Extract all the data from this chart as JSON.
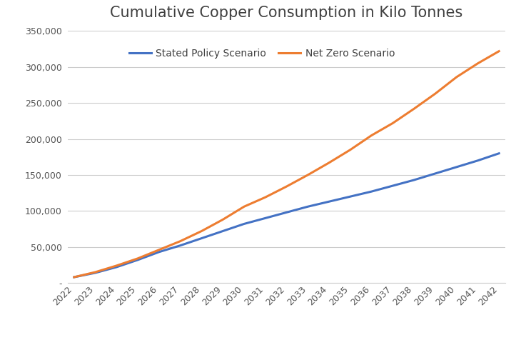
{
  "title": "Cumulative Copper Consumption in Kilo Tonnes",
  "years": [
    2022,
    2023,
    2024,
    2025,
    2026,
    2027,
    2028,
    2029,
    2030,
    2031,
    2032,
    2033,
    2034,
    2035,
    2036,
    2037,
    2038,
    2039,
    2040,
    2041,
    2042
  ],
  "stated_policy": [
    8000,
    14000,
    22000,
    32000,
    43000,
    52000,
    62000,
    72000,
    82000,
    90000,
    98000,
    106000,
    113000,
    120000,
    127000,
    135000,
    143000,
    152000,
    161000,
    170000,
    180000
  ],
  "net_zero": [
    8000,
    15000,
    24000,
    34000,
    46000,
    58000,
    72000,
    88000,
    106000,
    119000,
    134000,
    150000,
    167000,
    185000,
    205000,
    222000,
    242000,
    263000,
    286000,
    305000,
    322000
  ],
  "stated_policy_color": "#4472C4",
  "net_zero_color": "#ED7D31",
  "stated_policy_label": "Stated Policy Scenario",
  "net_zero_label": "Net Zero Scenario",
  "ylim": [
    0,
    350000
  ],
  "yticks": [
    0,
    50000,
    100000,
    150000,
    200000,
    250000,
    300000,
    350000
  ],
  "background_color": "#FFFFFF",
  "grid_color": "#CCCCCC",
  "title_fontsize": 15,
  "tick_fontsize": 9,
  "legend_fontsize": 10,
  "line_width": 2.2
}
